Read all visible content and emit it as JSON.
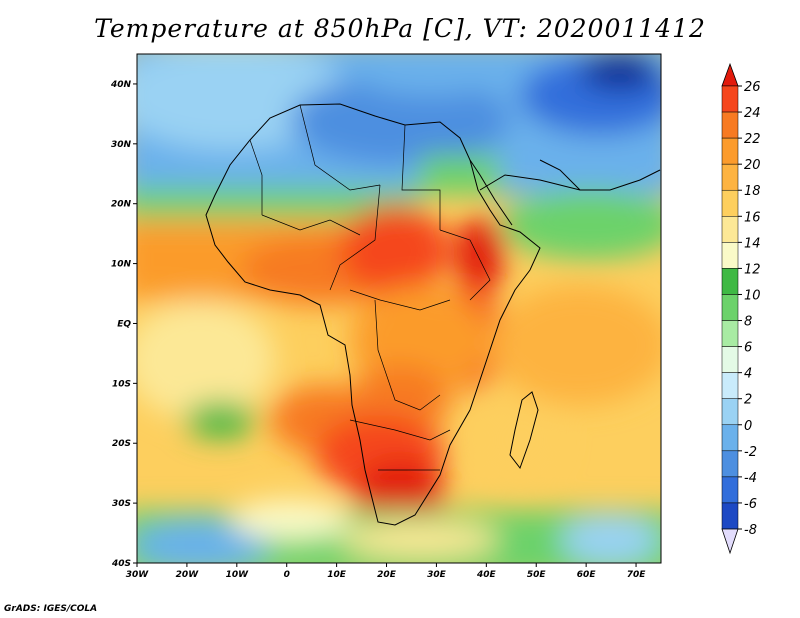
{
  "title": "Temperature at 850hPa [C], VT: 2020011412",
  "credit": "GrADS: IGES/COLA",
  "map": {
    "projection": "latlon",
    "lon_range": [
      -30,
      75
    ],
    "lat_range": [
      -40,
      45
    ],
    "lon_ticks": [
      {
        "value": -30,
        "label": "30W"
      },
      {
        "value": -20,
        "label": "20W"
      },
      {
        "value": -10,
        "label": "10W"
      },
      {
        "value": 0,
        "label": "0"
      },
      {
        "value": 10,
        "label": "10E"
      },
      {
        "value": 20,
        "label": "20E"
      },
      {
        "value": 30,
        "label": "30E"
      },
      {
        "value": 40,
        "label": "40E"
      },
      {
        "value": 50,
        "label": "50E"
      },
      {
        "value": 60,
        "label": "60E"
      },
      {
        "value": 70,
        "label": "70E"
      }
    ],
    "lat_ticks": [
      {
        "value": 40,
        "label": "40N"
      },
      {
        "value": 30,
        "label": "30N"
      },
      {
        "value": 20,
        "label": "20N"
      },
      {
        "value": 10,
        "label": "10N"
      },
      {
        "value": 0,
        "label": "EQ"
      },
      {
        "value": -10,
        "label": "10S"
      },
      {
        "value": -20,
        "label": "20S"
      },
      {
        "value": -30,
        "label": "30S"
      },
      {
        "value": -40,
        "label": "40S"
      }
    ],
    "field": "temperature_850hPa",
    "units": "C"
  },
  "colorbar": {
    "levels": [
      26,
      24,
      22,
      20,
      18,
      16,
      14,
      12,
      10,
      8,
      6,
      4,
      2,
      0,
      -2,
      -4,
      -6,
      -8
    ],
    "level_labels": [
      "26",
      "24",
      "22",
      "20",
      "18",
      "16",
      "14",
      "12",
      "10",
      "8",
      "6",
      "4",
      "2",
      "0",
      "-2",
      "-4",
      "-6",
      "-8"
    ],
    "colors": [
      "#e21a0c",
      "#f5461c",
      "#f77a22",
      "#fb9b2c",
      "#fdb341",
      "#fdcf5e",
      "#fce896",
      "#fafac8",
      "#3fb944",
      "#6cd26a",
      "#a8eba3",
      "#e4fae6",
      "#c9ebfb",
      "#9ad2f3",
      "#6bb1eb",
      "#4d8fe0",
      "#326edb",
      "#1d49c4",
      "#102a93"
    ],
    "top_color": "#e21a0c",
    "bottom_color": "#e2dcfc"
  }
}
